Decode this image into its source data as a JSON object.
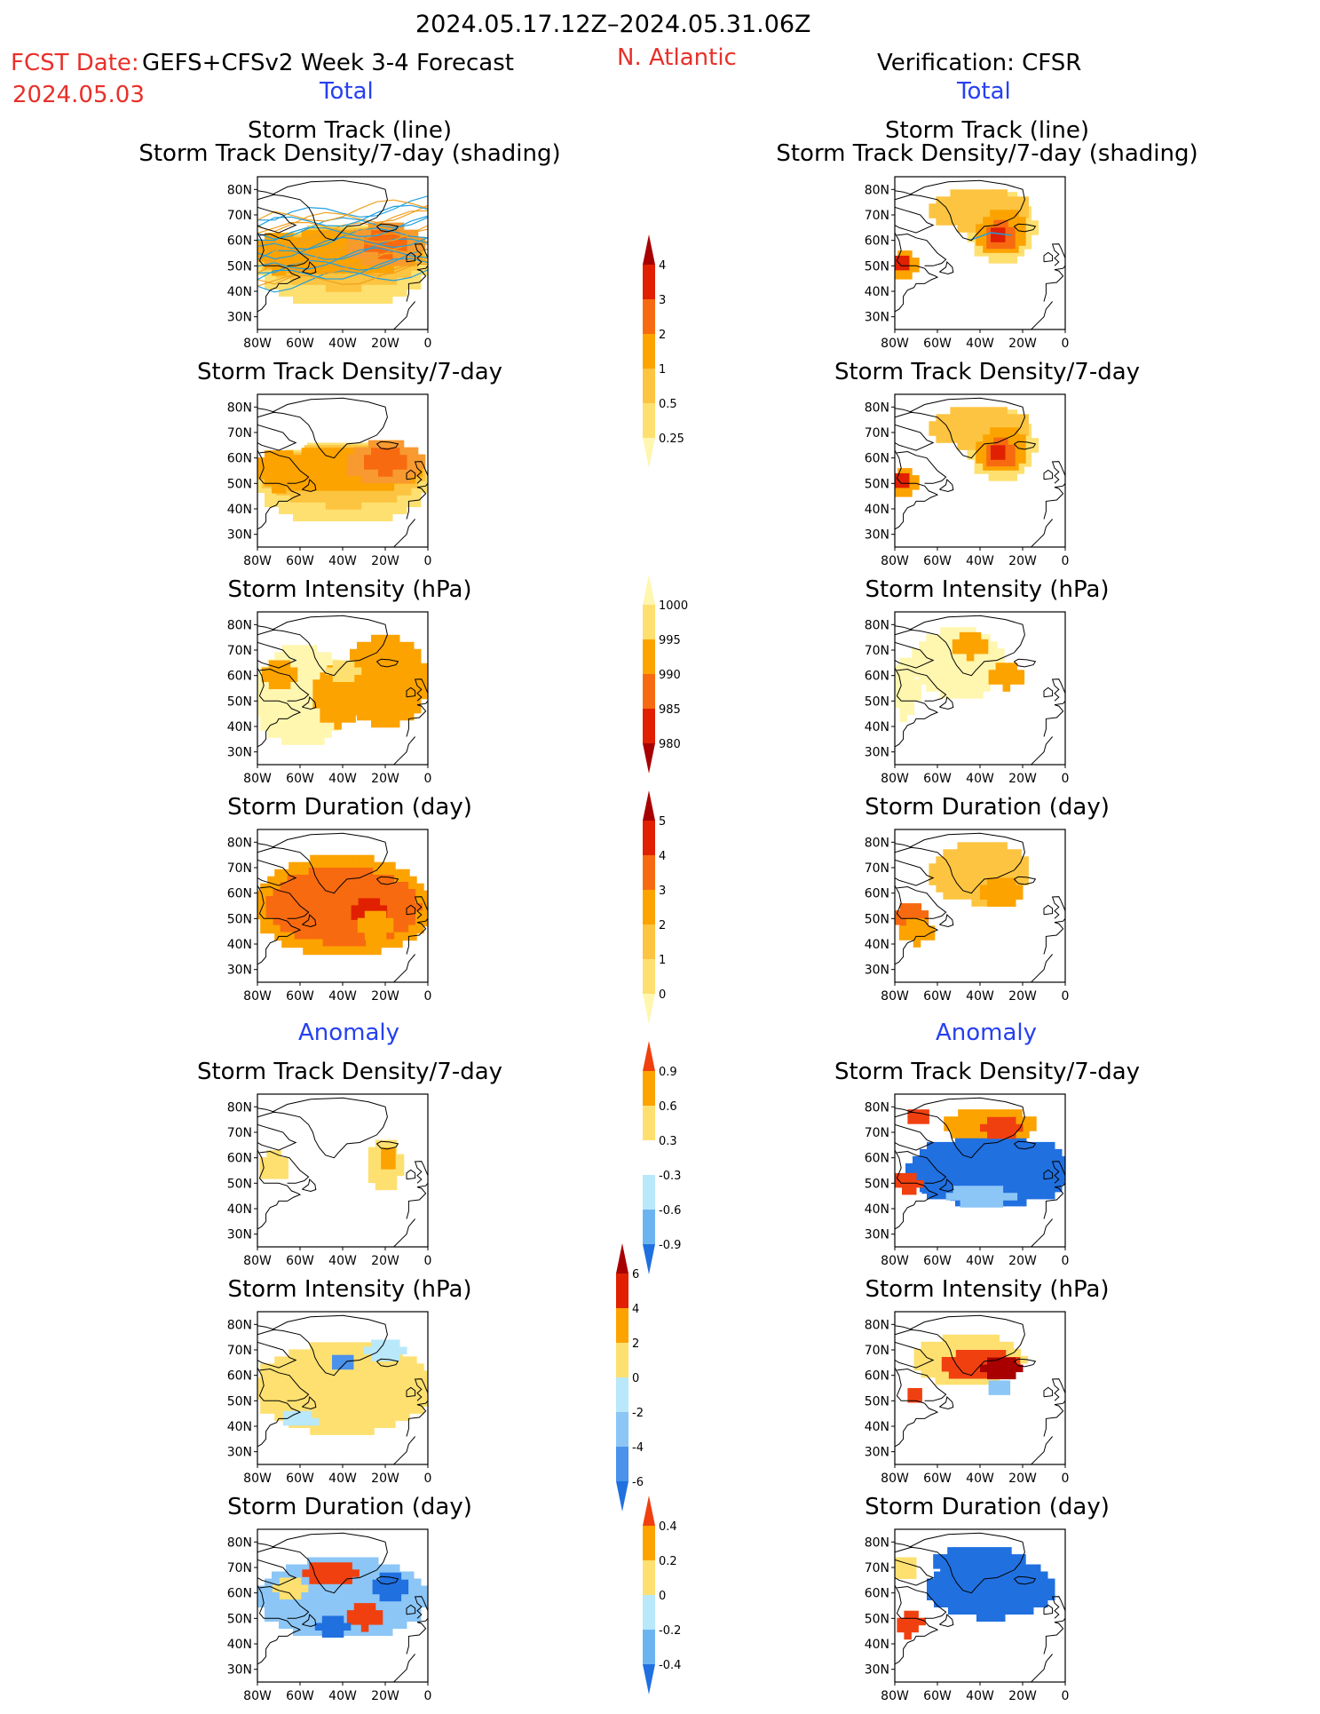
{
  "header": {
    "period": "2024.05.17.12Z–2024.05.31.06Z",
    "fcst_label": "FCST Date:",
    "model": "GEFS+CFSv2 Week 3-4 Forecast",
    "fcst_date": "2024.05.03",
    "region": "N. Atlantic",
    "verification": "Verification: CFSR"
  },
  "sections": {
    "total": "Total",
    "anomaly": "Anomaly"
  },
  "panel_titles": {
    "track_line": "Storm Track (line)",
    "track_shading": "Storm Track Density/7-day (shading)",
    "density": "Storm Track Density/7-day",
    "intensity": "Storm Intensity (hPa)",
    "duration": "Storm Duration (day)"
  },
  "axes": {
    "lat_ticks": [
      "80N",
      "70N",
      "60N",
      "50N",
      "40N",
      "30N"
    ],
    "lon_ticks": [
      "80W",
      "60W",
      "40W",
      "20W",
      "0"
    ]
  },
  "colorbars": {
    "density_total": {
      "labels": [
        "4",
        "3",
        "2",
        "1",
        "0.5",
        "0.25"
      ],
      "colors": [
        "#a80000",
        "#e02000",
        "#f86a10",
        "#fca300",
        "#fcc440",
        "#fde070",
        "#fff6b0"
      ]
    },
    "intensity_total": {
      "labels": [
        "1000",
        "995",
        "990",
        "985",
        "980"
      ],
      "colors": [
        "#fff6b0",
        "#fde070",
        "#fca300",
        "#f86a10",
        "#e02000",
        "#a80000"
      ]
    },
    "duration_total": {
      "labels": [
        "5",
        "4",
        "3",
        "2",
        "1",
        "0"
      ],
      "colors": [
        "#a80000",
        "#e02000",
        "#f86a10",
        "#fca300",
        "#fcc440",
        "#fde070",
        "#fff6b0"
      ]
    },
    "density_anom": {
      "labels": [
        "0.9",
        "0.6",
        "0.3",
        "-0.3",
        "-0.6",
        "-0.9"
      ],
      "colors": [
        "#f04010",
        "#fca300",
        "#fde070",
        "#ffffff",
        "#b8e8fa",
        "#6cb4f0",
        "#2070e0"
      ]
    },
    "intensity_anom": {
      "labels": [
        "6",
        "4",
        "2",
        "0",
        "-2",
        "-4",
        "-6"
      ],
      "colors": [
        "#a80000",
        "#e02000",
        "#fca300",
        "#fde070",
        "#b8e8fa",
        "#8cc6f6",
        "#4a92ea",
        "#2070e0"
      ]
    },
    "duration_anom": {
      "labels": [
        "0.4",
        "0.2",
        "0",
        "-0.2",
        "-0.4"
      ],
      "colors": [
        "#f04010",
        "#fca300",
        "#fde070",
        "#b8e8fa",
        "#6cb4f0",
        "#2070e0"
      ]
    }
  }
}
